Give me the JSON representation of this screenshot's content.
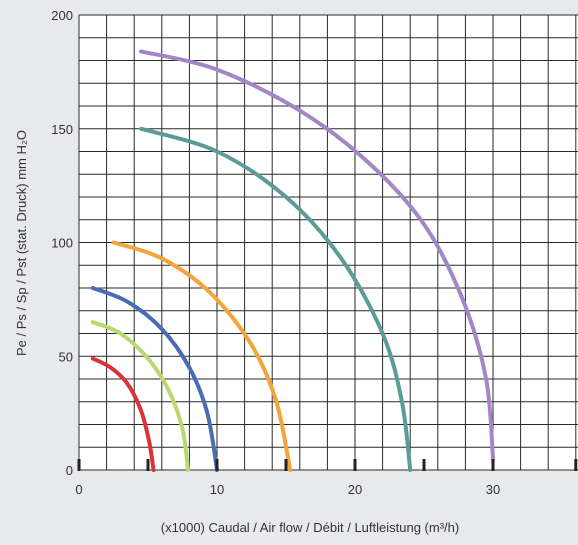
{
  "chart_data": {
    "type": "line",
    "title": "",
    "xlabel": "(x1000) Caudal / Air flow / Débit / Luftleistung (m³/h)",
    "ylabel": "Pe / Ps / Sp / Pst (stat. Druck) mm H₂O",
    "xlim": [
      0,
      36.5
    ],
    "ylim": [
      0,
      200
    ],
    "x_ticks": [
      "0",
      "10",
      "20",
      "30"
    ],
    "y_ticks": [
      "0",
      "50",
      "100",
      "150",
      "200"
    ],
    "grid": true,
    "legend": "none",
    "series": [
      {
        "color": "#d8343a",
        "points": [
          [
            1.0,
            49
          ],
          [
            2.3,
            45
          ],
          [
            3.5,
            38
          ],
          [
            4.5,
            26
          ],
          [
            5.1,
            12
          ],
          [
            5.4,
            0
          ]
        ]
      },
      {
        "color": "#b8d970",
        "points": [
          [
            1.0,
            65
          ],
          [
            3.0,
            60
          ],
          [
            5.0,
            49
          ],
          [
            6.5,
            35
          ],
          [
            7.5,
            18
          ],
          [
            7.9,
            0
          ]
        ]
      },
      {
        "color": "#4a6bb6",
        "points": [
          [
            1.0,
            80
          ],
          [
            3.5,
            74
          ],
          [
            6.0,
            62
          ],
          [
            8.0,
            45
          ],
          [
            9.3,
            25
          ],
          [
            10.0,
            0
          ]
        ]
      },
      {
        "color": "#f4a43a",
        "points": [
          [
            2.5,
            100
          ],
          [
            6.0,
            93
          ],
          [
            9.5,
            78
          ],
          [
            12.5,
            55
          ],
          [
            14.3,
            30
          ],
          [
            15.3,
            0
          ]
        ]
      },
      {
        "color": "#5c9c98",
        "points": [
          [
            4.5,
            150
          ],
          [
            10.0,
            140
          ],
          [
            15.0,
            120
          ],
          [
            19.0,
            93
          ],
          [
            22.0,
            60
          ],
          [
            23.4,
            30
          ],
          [
            24.0,
            0
          ]
        ]
      },
      {
        "color": "#a386c6",
        "points": [
          [
            4.5,
            184
          ],
          [
            10.0,
            176
          ],
          [
            16.0,
            158
          ],
          [
            21.0,
            135
          ],
          [
            25.0,
            108
          ],
          [
            27.8,
            75
          ],
          [
            29.5,
            40
          ],
          [
            30.0,
            5
          ]
        ]
      }
    ]
  }
}
